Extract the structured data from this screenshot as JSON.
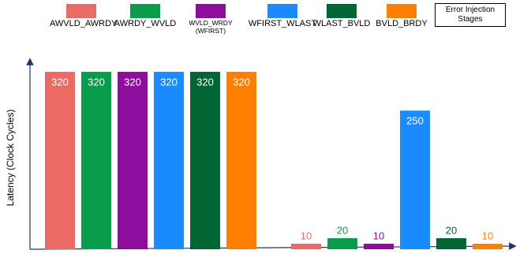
{
  "chart_data": {
    "type": "bar",
    "legend_title": "Error Injection Stages",
    "y_label": "Latency  (Clock Cycles)",
    "categories": [
      null,
      null
    ],
    "series": [
      {
        "name": "AWVLD_AWRDY",
        "color": "#ea6b66",
        "values": [
          320,
          10
        ]
      },
      {
        "name": "AWRDY_WVLD",
        "color": "#0a9c4d",
        "values": [
          320,
          20
        ]
      },
      {
        "name": "WVLD_WRDY (WFIRST)",
        "color": "#8e0d9c",
        "values": [
          320,
          10
        ]
      },
      {
        "name": "WFIRST_WLAST",
        "color": "#1a8cff",
        "values": [
          320,
          250
        ]
      },
      {
        "name": "WLAST_BVLD",
        "color": "#006633",
        "values": [
          320,
          20
        ]
      },
      {
        "name": "BVLD_BRDY",
        "color": "#ff8000",
        "values": [
          320,
          10
        ]
      }
    ],
    "ylim": [
      0,
      330
    ]
  }
}
